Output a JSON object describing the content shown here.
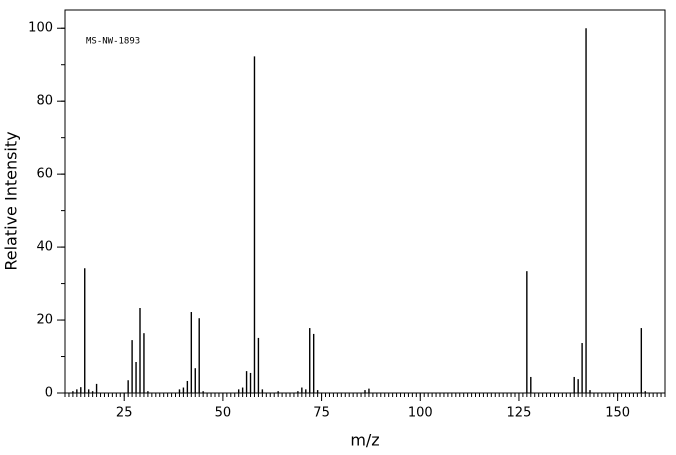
{
  "chart_data": {
    "type": "bar",
    "annotation": "MS-NW-1893",
    "xlabel": "m/z",
    "ylabel": "Relative Intensity",
    "x": [
      12,
      13,
      14,
      15,
      16,
      17,
      18,
      26,
      27,
      28,
      29,
      30,
      31,
      39,
      40,
      41,
      42,
      43,
      44,
      45,
      54,
      55,
      56,
      57,
      58,
      59,
      60,
      64,
      69,
      70,
      71,
      72,
      73,
      74,
      86,
      87,
      127,
      128,
      139,
      140,
      141,
      142,
      143,
      156,
      157
    ],
    "values": [
      0.5,
      1,
      1.6,
      34.2,
      1,
      0.5,
      2.5,
      3.5,
      14.5,
      8.5,
      23.3,
      16.4,
      0.5,
      1,
      1.5,
      3.3,
      22.2,
      6.8,
      20.5,
      0.5,
      1,
      1.5,
      6,
      5.5,
      92.3,
      15.1,
      1,
      0.5,
      0.5,
      1.5,
      1,
      17.8,
      16.2,
      0.8,
      0.8,
      1.2,
      33.4,
      4.4,
      4.4,
      3.8,
      13.7,
      100,
      0.8,
      17.8,
      0.5
    ],
    "color": "#000000",
    "xlim": [
      10,
      162
    ],
    "xticks": [
      25,
      50,
      75,
      100,
      125,
      150
    ],
    "xminor": 1,
    "ylim": [
      0,
      105
    ],
    "yticks": [
      0,
      20,
      40,
      60,
      80,
      100
    ],
    "yminor": 10
  }
}
